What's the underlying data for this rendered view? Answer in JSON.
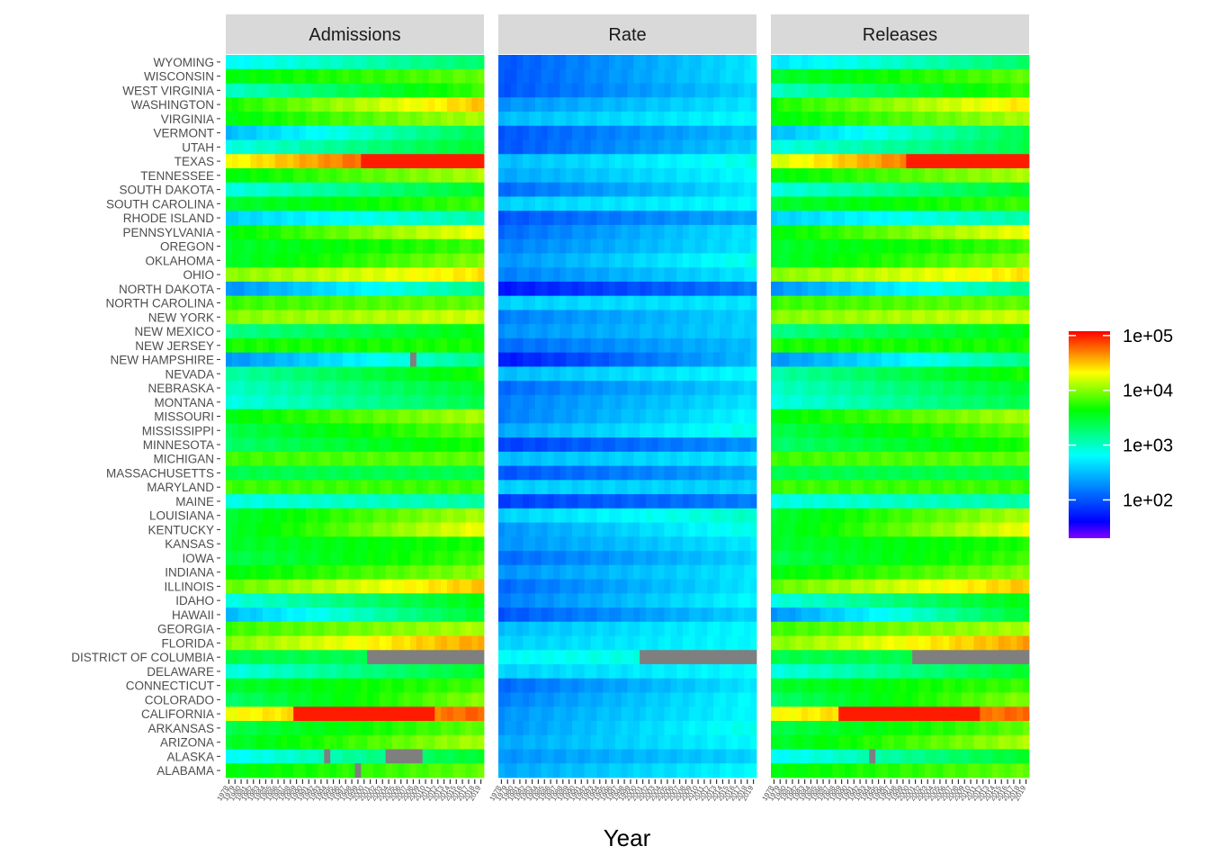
{
  "chart_data": {
    "type": "heatmap",
    "xlabel": "Year",
    "panels": [
      "Admissions",
      "Rate",
      "Releases"
    ],
    "years": [
      1978,
      1979,
      1980,
      1981,
      1982,
      1983,
      1984,
      1985,
      1986,
      1987,
      1988,
      1989,
      1990,
      1991,
      1992,
      1993,
      1994,
      1995,
      1996,
      1997,
      1998,
      1999,
      2000,
      2001,
      2002,
      2003,
      2004,
      2005,
      2006,
      2007,
      2008,
      2009,
      2010,
      2011,
      2012,
      2013,
      2014,
      2015,
      2016,
      2017,
      2018,
      2019
    ],
    "states_top_to_bottom": [
      "WYOMING",
      "WISCONSIN",
      "WEST VIRGINIA",
      "WASHINGTON",
      "VIRGINIA",
      "VERMONT",
      "UTAH",
      "TEXAS",
      "TENNESSEE",
      "SOUTH DAKOTA",
      "SOUTH CAROLINA",
      "RHODE ISLAND",
      "PENNSYLVANIA",
      "OREGON",
      "OKLAHOMA",
      "OHIO",
      "NORTH DAKOTA",
      "NORTH CAROLINA",
      "NEW YORK",
      "NEW MEXICO",
      "NEW JERSEY",
      "NEW HAMPSHIRE",
      "NEVADA",
      "NEBRASKA",
      "MONTANA",
      "MISSOURI",
      "MISSISSIPPI",
      "MINNESOTA",
      "MICHIGAN",
      "MASSACHUSETTS",
      "MARYLAND",
      "MAINE",
      "LOUISIANA",
      "KENTUCKY",
      "KANSAS",
      "IOWA",
      "INDIANA",
      "ILLINOIS",
      "IDAHO",
      "HAWAII",
      "GEORGIA",
      "FLORIDA",
      "DISTRICT OF COLUMBIA",
      "DELAWARE",
      "CONNECTICUT",
      "COLORADO",
      "CALIFORNIA",
      "ARKANSAS",
      "ARIZONA",
      "ALASKA",
      "ALABAMA"
    ],
    "color_scale": {
      "type": "log10",
      "range": [
        20,
        120000
      ],
      "breaks": [
        100,
        1000,
        10000,
        100000
      ],
      "labels": [
        "1e+02",
        "1e+03",
        "1e+04",
        "1e+05"
      ],
      "colors": [
        "#8000ff",
        "#0000ff",
        "#00ffff",
        "#00ff00",
        "#ffff00",
        "#ff0000"
      ],
      "missing_color": "#7f7f7f"
    },
    "approx_log10_levels": {
      "note_ranges": "start and end log10 value per state across years, per panel",
      "Admissions": {
        "WYOMING": [
          2.8,
          3.3
        ],
        "WISCONSIN": [
          3.6,
          3.9
        ],
        "WEST VIRGINIA": [
          3.0,
          3.8
        ],
        "WASHINGTON": [
          3.7,
          4.5
        ],
        "VIRGINIA": [
          3.6,
          4.1
        ],
        "VERMONT": [
          2.5,
          3.4
        ],
        "UTAH": [
          2.9,
          3.5
        ],
        "TEXAS": [
          4.3,
          5.2
        ],
        "TENNESSEE": [
          3.6,
          4.1
        ],
        "SOUTH DAKOTA": [
          2.9,
          3.5
        ],
        "SOUTH CAROLINA": [
          3.5,
          3.8
        ],
        "RHODE ISLAND": [
          2.6,
          3.1
        ],
        "PENNSYLVANIA": [
          3.6,
          4.3
        ],
        "OREGON": [
          3.5,
          3.8
        ],
        "OKLAHOMA": [
          3.5,
          4.0
        ],
        "OHIO": [
          4.0,
          4.4
        ],
        "NORTH DAKOTA": [
          2.3,
          3.2
        ],
        "NORTH CAROLINA": [
          3.8,
          3.9
        ],
        "NEW YORK": [
          4.0,
          4.2
        ],
        "NEW MEXICO": [
          3.2,
          3.6
        ],
        "NEW JERSEY": [
          3.7,
          3.7
        ],
        "NEW HAMPSHIRE": [
          2.3,
          3.2
        ],
        "NEVADA": [
          3.1,
          3.7
        ],
        "NEBRASKA": [
          3.0,
          3.5
        ],
        "MONTANA": [
          2.9,
          3.4
        ],
        "MISSOURI": [
          3.6,
          4.1
        ],
        "MISSISSIPPI": [
          3.4,
          3.9
        ],
        "MINNESOTA": [
          3.3,
          3.7
        ],
        "MICHIGAN": [
          3.8,
          3.9
        ],
        "MASSACHUSETTS": [
          3.4,
          3.4
        ],
        "MARYLAND": [
          3.8,
          3.8
        ],
        "MAINE": [
          2.9,
          3.1
        ],
        "LOUISIANA": [
          3.5,
          4.1
        ],
        "KENTUCKY": [
          3.5,
          4.3
        ],
        "KANSAS": [
          3.5,
          3.7
        ],
        "IOWA": [
          3.4,
          3.8
        ],
        "INDIANA": [
          3.6,
          4.0
        ],
        "ILLINOIS": [
          3.9,
          4.5
        ],
        "IDAHO": [
          2.9,
          3.6
        ],
        "HAWAII": [
          2.5,
          3.5
        ],
        "GEORGIA": [
          3.8,
          4.1
        ],
        "FLORIDA": [
          4.0,
          4.6
        ],
        "DISTRICT OF COLUMBIA": [
          3.4,
          3.4
        ],
        "DELAWARE": [
          2.9,
          3.5
        ],
        "CONNECTICUT": [
          3.5,
          3.8
        ],
        "COLORADO": [
          3.3,
          4.0
        ],
        "CALIFORNIA": [
          4.3,
          4.8
        ],
        "ARKANSAS": [
          3.4,
          3.9
        ],
        "ARIZONA": [
          3.5,
          4.1
        ],
        "ALASKA": [
          2.8,
          3.5
        ],
        "ALABAMA": [
          3.6,
          3.9
        ]
      },
      "Rate": {
        "WYOMING": [
          2.0,
          2.7
        ],
        "WISCONSIN": [
          2.0,
          2.7
        ],
        "WEST VIRGINIA": [
          2.0,
          2.6
        ],
        "WASHINGTON": [
          2.3,
          2.7
        ],
        "VIRGINIA": [
          2.5,
          2.8
        ],
        "VERMONT": [
          2.0,
          2.5
        ],
        "UTAH": [
          2.0,
          2.6
        ],
        "TEXAS": [
          2.5,
          2.9
        ],
        "TENNESSEE": [
          2.4,
          2.8
        ],
        "SOUTH DAKOTA": [
          2.1,
          2.7
        ],
        "SOUTH CAROLINA": [
          2.6,
          2.8
        ],
        "RHODE ISLAND": [
          2.0,
          2.4
        ],
        "PENNSYLVANIA": [
          2.1,
          2.7
        ],
        "OREGON": [
          2.2,
          2.7
        ],
        "OKLAHOMA": [
          2.3,
          2.9
        ],
        "OHIO": [
          2.2,
          2.7
        ],
        "NORTH DAKOTA": [
          1.7,
          2.2
        ],
        "NORTH CAROLINA": [
          2.6,
          2.7
        ],
        "NEW YORK": [
          2.2,
          2.6
        ],
        "NEW MEXICO": [
          2.3,
          2.6
        ],
        "NEW JERSEY": [
          2.1,
          2.5
        ],
        "NEW HAMPSHIRE": [
          1.7,
          2.5
        ],
        "NEVADA": [
          2.5,
          2.8
        ],
        "NEBRASKA": [
          2.1,
          2.6
        ],
        "MONTANA": [
          2.2,
          2.7
        ],
        "MISSOURI": [
          2.2,
          2.8
        ],
        "MISSISSIPPI": [
          2.4,
          2.9
        ],
        "MINNESOTA": [
          1.9,
          2.3
        ],
        "MICHIGAN": [
          2.5,
          2.7
        ],
        "MASSACHUSETTS": [
          2.0,
          2.4
        ],
        "MARYLAND": [
          2.6,
          2.6
        ],
        "MAINE": [
          1.9,
          2.2
        ],
        "LOUISIANA": [
          2.6,
          3.0
        ],
        "KENTUCKY": [
          2.3,
          2.9
        ],
        "KANSAS": [
          2.3,
          2.7
        ],
        "IOWA": [
          2.1,
          2.6
        ],
        "INDIANA": [
          2.3,
          2.7
        ],
        "ILLINOIS": [
          2.1,
          2.7
        ],
        "IDAHO": [
          2.2,
          2.8
        ],
        "HAWAII": [
          2.0,
          2.6
        ],
        "GEORGIA": [
          2.5,
          2.8
        ],
        "FLORIDA": [
          2.6,
          2.8
        ],
        "DISTRICT OF COLUMBIA": [
          2.8,
          3.0
        ],
        "DELAWARE": [
          2.6,
          2.8
        ],
        "CONNECTICUT": [
          2.1,
          2.7
        ],
        "COLORADO": [
          2.2,
          2.8
        ],
        "CALIFORNIA": [
          2.3,
          2.8
        ],
        "ARKANSAS": [
          2.3,
          2.9
        ],
        "ARIZONA": [
          2.4,
          2.8
        ],
        "ALASKA": [
          2.3,
          2.6
        ],
        "ALABAMA": [
          2.4,
          2.8
        ]
      },
      "Releases": {
        "WYOMING": [
          2.7,
          3.3
        ],
        "WISCONSIN": [
          3.5,
          3.9
        ],
        "WEST VIRGINIA": [
          3.0,
          3.8
        ],
        "WASHINGTON": [
          3.7,
          4.4
        ],
        "VIRGINIA": [
          3.6,
          4.1
        ],
        "VERMONT": [
          2.5,
          3.4
        ],
        "UTAH": [
          2.9,
          3.4
        ],
        "TEXAS": [
          4.2,
          5.2
        ],
        "TENNESSEE": [
          3.6,
          4.1
        ],
        "SOUTH DAKOTA": [
          2.9,
          3.5
        ],
        "SOUTH CAROLINA": [
          3.5,
          3.8
        ],
        "RHODE ISLAND": [
          2.6,
          3.1
        ],
        "PENNSYLVANIA": [
          3.6,
          4.3
        ],
        "OREGON": [
          3.5,
          3.8
        ],
        "OKLAHOMA": [
          3.5,
          4.0
        ],
        "OHIO": [
          4.0,
          4.4
        ],
        "NORTH DAKOTA": [
          2.3,
          3.2
        ],
        "NORTH CAROLINA": [
          3.8,
          3.9
        ],
        "NEW YORK": [
          4.0,
          4.2
        ],
        "NEW MEXICO": [
          3.2,
          3.6
        ],
        "NEW JERSEY": [
          3.7,
          3.7
        ],
        "NEW HAMPSHIRE": [
          2.3,
          3.2
        ],
        "NEVADA": [
          3.1,
          3.7
        ],
        "NEBRASKA": [
          3.0,
          3.5
        ],
        "MONTANA": [
          2.9,
          3.4
        ],
        "MISSOURI": [
          3.6,
          4.1
        ],
        "MISSISSIPPI": [
          3.4,
          3.9
        ],
        "MINNESOTA": [
          3.3,
          3.7
        ],
        "MICHIGAN": [
          3.8,
          3.9
        ],
        "MASSACHUSETTS": [
          3.4,
          3.4
        ],
        "MARYLAND": [
          3.8,
          3.8
        ],
        "MAINE": [
          2.9,
          3.1
        ],
        "LOUISIANA": [
          3.5,
          4.1
        ],
        "KENTUCKY": [
          3.5,
          4.3
        ],
        "KANSAS": [
          3.5,
          3.7
        ],
        "IOWA": [
          3.4,
          3.8
        ],
        "INDIANA": [
          3.6,
          4.0
        ],
        "ILLINOIS": [
          3.9,
          4.5
        ],
        "IDAHO": [
          2.9,
          3.6
        ],
        "HAWAII": [
          2.3,
          3.5
        ],
        "GEORGIA": [
          3.8,
          4.1
        ],
        "FLORIDA": [
          4.0,
          4.6
        ],
        "DISTRICT OF COLUMBIA": [
          3.4,
          3.4
        ],
        "DELAWARE": [
          2.9,
          3.5
        ],
        "CONNECTICUT": [
          3.5,
          3.8
        ],
        "COLORADO": [
          3.3,
          4.0
        ],
        "CALIFORNIA": [
          4.3,
          4.8
        ],
        "ARKANSAS": [
          3.4,
          3.9
        ],
        "ARIZONA": [
          3.5,
          4.1
        ],
        "ALASKA": [
          2.8,
          3.5
        ],
        "ALABAMA": [
          3.6,
          3.9
        ]
      }
    },
    "missing_cells": {
      "Admissions": {
        "DISTRICT OF COLUMBIA": [
          [
            2001,
            2019
          ]
        ],
        "NEW HAMPSHIRE": [
          [
            2008,
            2008
          ]
        ],
        "ALASKA": [
          [
            1994,
            1994
          ],
          [
            2004,
            2009
          ]
        ],
        "ALABAMA": [
          [
            1999,
            1999
          ]
        ]
      },
      "Rate": {
        "DISTRICT OF COLUMBIA": [
          [
            2001,
            2019
          ]
        ]
      },
      "Releases": {
        "DISTRICT OF COLUMBIA": [
          [
            2001,
            2019
          ]
        ],
        "ALASKA": [
          [
            1994,
            1994
          ]
        ]
      }
    },
    "peak_cells": {
      "Admissions": {
        "CALIFORNIA": [
          [
            1989,
            2011,
            5.0
          ]
        ],
        "TEXAS": [
          [
            2000,
            2019,
            5.0
          ]
        ]
      },
      "Releases": {
        "CALIFORNIA": [
          [
            1989,
            2011,
            5.0
          ]
        ],
        "TEXAS": [
          [
            2000,
            2019,
            5.0
          ]
        ]
      }
    }
  }
}
